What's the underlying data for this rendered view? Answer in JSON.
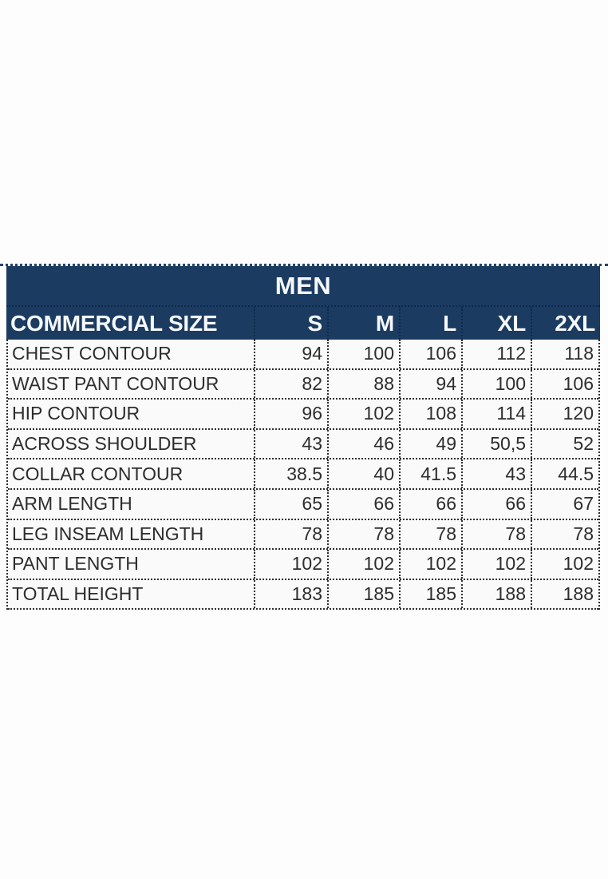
{
  "chart_data": {
    "type": "table",
    "title": "MEN",
    "header": {
      "label": "COMMERCIAL SIZE",
      "sizes": [
        "S",
        "M",
        "L",
        "XL",
        "2XL"
      ]
    },
    "rows": [
      {
        "label": "CHEST CONTOUR",
        "values": [
          "94",
          "100",
          "106",
          "112",
          "118"
        ]
      },
      {
        "label": "WAIST PANT CONTOUR",
        "values": [
          "82",
          "88",
          "94",
          "100",
          "106"
        ]
      },
      {
        "label": "HIP CONTOUR",
        "values": [
          "96",
          "102",
          "108",
          "114",
          "120"
        ]
      },
      {
        "label": "ACROSS SHOULDER",
        "values": [
          "43",
          "46",
          "49",
          "50,5",
          "52"
        ]
      },
      {
        "label": "COLLAR CONTOUR",
        "values": [
          "38.5",
          "40",
          "41.5",
          "43",
          "44.5"
        ]
      },
      {
        "label": "ARM LENGTH",
        "values": [
          "65",
          "66",
          "66",
          "66",
          "67"
        ]
      },
      {
        "label": "LEG INSEAM LENGTH",
        "values": [
          "78",
          "78",
          "78",
          "78",
          "78"
        ]
      },
      {
        "label": "PANT LENGTH",
        "values": [
          "102",
          "102",
          "102",
          "102",
          "102"
        ]
      },
      {
        "label": "TOTAL HEIGHT",
        "values": [
          "183",
          "185",
          "185",
          "188",
          "188"
        ]
      }
    ],
    "colors": {
      "header_bg": "#1b3b61",
      "header_text": "#f6f8fb",
      "body_text": "#2d2d2d",
      "grid": "#2f2f2f"
    },
    "layout": {
      "grid": "dotted",
      "value_alignment": "right",
      "title_position": "center-top-banner"
    }
  }
}
